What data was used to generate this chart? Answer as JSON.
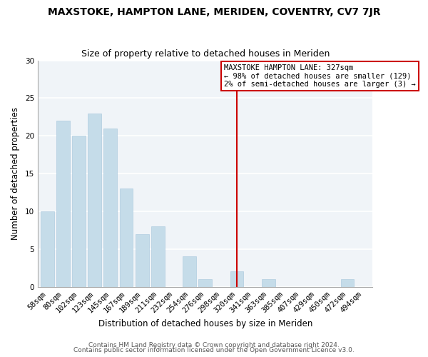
{
  "title": "MAXSTOKE, HAMPTON LANE, MERIDEN, COVENTRY, CV7 7JR",
  "subtitle": "Size of property relative to detached houses in Meriden",
  "xlabel": "Distribution of detached houses by size in Meriden",
  "ylabel": "Number of detached properties",
  "categories": [
    "58sqm",
    "80sqm",
    "102sqm",
    "123sqm",
    "145sqm",
    "167sqm",
    "189sqm",
    "211sqm",
    "232sqm",
    "254sqm",
    "276sqm",
    "298sqm",
    "320sqm",
    "341sqm",
    "363sqm",
    "385sqm",
    "407sqm",
    "429sqm",
    "450sqm",
    "472sqm",
    "494sqm"
  ],
  "values": [
    10,
    22,
    20,
    23,
    21,
    13,
    7,
    8,
    0,
    4,
    1,
    0,
    2,
    0,
    1,
    0,
    0,
    0,
    0,
    1,
    0
  ],
  "bar_color": "#c5dce9",
  "bar_edge_color": "#b0cce0",
  "vline_x_index": 12,
  "vline_color": "#cc0000",
  "ylim": [
    0,
    30
  ],
  "yticks": [
    0,
    5,
    10,
    15,
    20,
    25,
    30
  ],
  "annotation_box": {
    "title": "MAXSTOKE HAMPTON LANE: 327sqm",
    "line1": "← 98% of detached houses are smaller (129)",
    "line2": "2% of semi-detached houses are larger (3) →"
  },
  "footer1": "Contains HM Land Registry data © Crown copyright and database right 2024.",
  "footer2": "Contains public sector information licensed under the Open Government Licence v3.0.",
  "background_color": "#ffffff",
  "plot_bg_color": "#f0f4f8",
  "grid_color": "#ffffff",
  "title_fontsize": 10,
  "subtitle_fontsize": 9,
  "axis_label_fontsize": 8.5,
  "tick_fontsize": 7.5,
  "footer_fontsize": 6.5,
  "annotation_fontsize": 7.5
}
